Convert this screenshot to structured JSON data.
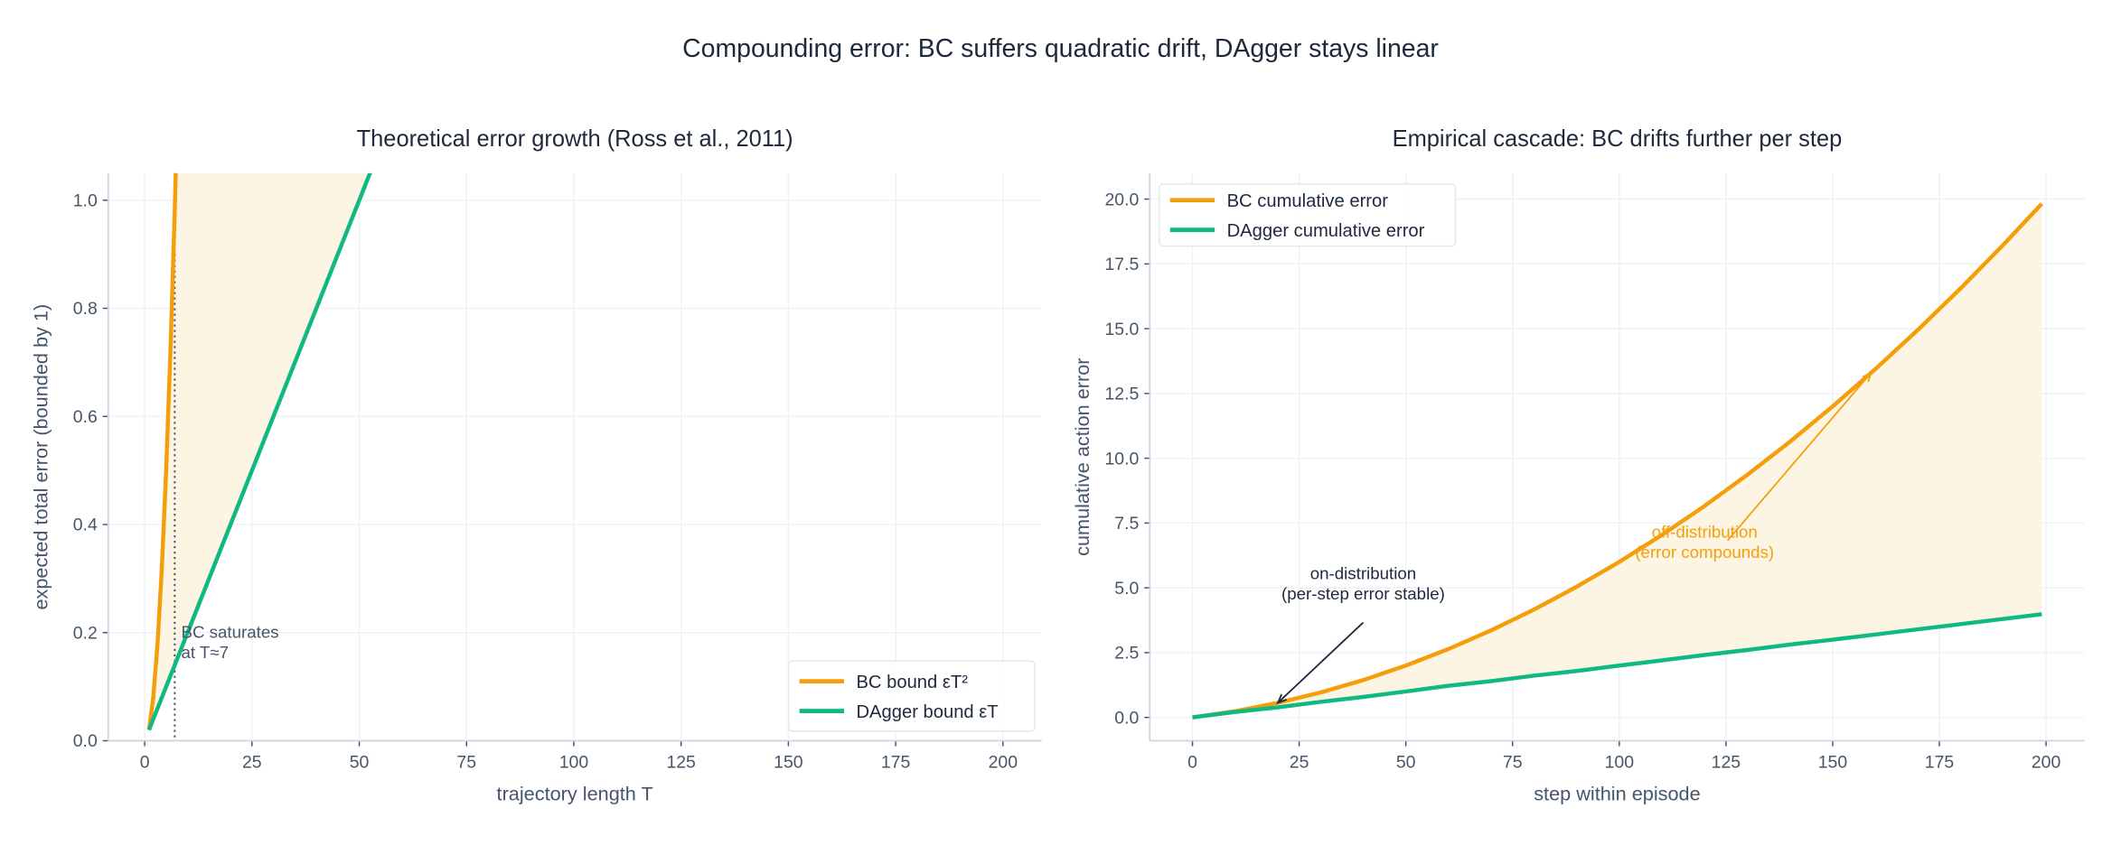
{
  "figure": {
    "suptitle": "Compounding error: BC suffers quadratic drift, DAgger stays linear"
  },
  "colors": {
    "bc": "#f59e0b",
    "dagger": "#10b981",
    "fill": "#fdf3de",
    "text": "#1e293b",
    "tick": "#475569",
    "grid": "#eef2f6",
    "spine": "#cbd5e1",
    "guide": "#475569"
  },
  "chart_data": [
    {
      "type": "line",
      "title": "Theoretical error growth (Ross et al., 2011)",
      "xlabel": "trajectory length T",
      "ylabel": "expected total error (bounded by 1)",
      "xlim": [
        -8.5,
        209
      ],
      "ylim": [
        0,
        1.05
      ],
      "xticks": [
        0,
        25,
        50,
        75,
        100,
        125,
        150,
        175,
        200
      ],
      "xtick_labels": [
        "0",
        "25",
        "50",
        "75",
        "100",
        "125",
        "150",
        "175",
        "200"
      ],
      "yticks": [
        0,
        0.2,
        0.4,
        0.6,
        0.8,
        1.0
      ],
      "ytick_labels": [
        "0.0",
        "0.2",
        "0.4",
        "0.6",
        "0.8",
        "1.0"
      ],
      "grid": true,
      "legend": "lower-right",
      "shaded_between_series": true,
      "series": [
        {
          "name": "BC bound  εT²",
          "color": "bc",
          "x": [
            1,
            2,
            3,
            4,
            5,
            6,
            7,
            8
          ],
          "y": [
            0.02,
            0.08,
            0.18,
            0.32,
            0.5,
            0.72,
            0.98,
            1.28
          ]
        },
        {
          "name": "DAgger bound  εT",
          "color": "dagger",
          "x": [
            1,
            10,
            20,
            30,
            40,
            50,
            60
          ],
          "y": [
            0.02,
            0.2,
            0.4,
            0.6,
            0.8,
            1.0,
            1.2
          ]
        }
      ],
      "vline": {
        "x": 7,
        "style": "dotted"
      },
      "annotations": [
        {
          "text_lines": [
            "BC saturates",
            "at T≈7"
          ],
          "x": 8.5,
          "y": 0.2
        }
      ]
    },
    {
      "type": "line",
      "title": "Empirical cascade: BC drifts further per step",
      "xlabel": "step within episode",
      "ylabel": "cumulative action error",
      "xlim": [
        -10,
        209
      ],
      "ylim": [
        -0.9,
        21
      ],
      "xticks": [
        0,
        25,
        50,
        75,
        100,
        125,
        150,
        175,
        200
      ],
      "xtick_labels": [
        "0",
        "25",
        "50",
        "75",
        "100",
        "125",
        "150",
        "175",
        "200"
      ],
      "yticks": [
        0,
        2.5,
        5,
        7.5,
        10,
        12.5,
        15,
        17.5,
        20
      ],
      "ytick_labels": [
        "0.0",
        "2.5",
        "5.0",
        "7.5",
        "10.0",
        "12.5",
        "15.0",
        "17.5",
        "20.0"
      ],
      "grid": true,
      "legend": "upper-left",
      "shaded_between_series": true,
      "series": [
        {
          "name": "BC cumulative error",
          "color": "bc",
          "x": [
            0,
            10,
            20,
            30,
            40,
            50,
            60,
            70,
            80,
            90,
            100,
            110,
            120,
            130,
            140,
            150,
            160,
            170,
            180,
            190,
            199
          ],
          "y": [
            0,
            0.24,
            0.56,
            0.96,
            1.44,
            2.0,
            2.64,
            3.36,
            4.16,
            5.04,
            6.0,
            7.04,
            8.16,
            9.36,
            10.64,
            12.0,
            13.44,
            14.96,
            16.56,
            18.24,
            19.82
          ]
        },
        {
          "name": "DAgger cumulative error",
          "color": "dagger",
          "x": [
            0,
            10,
            20,
            30,
            40,
            50,
            60,
            70,
            80,
            90,
            100,
            110,
            120,
            130,
            140,
            150,
            160,
            170,
            180,
            190,
            199
          ],
          "y": [
            0,
            0.21,
            0.39,
            0.6,
            0.79,
            1.0,
            1.22,
            1.4,
            1.61,
            1.79,
            2.0,
            2.2,
            2.41,
            2.6,
            2.81,
            3.0,
            3.2,
            3.4,
            3.6,
            3.8,
            3.98
          ]
        }
      ],
      "annotations": [
        {
          "text_lines": [
            "on-distribution",
            "(per-step error stable)"
          ],
          "text_x": 40,
          "text_y": 4.6,
          "arrow_to": [
            20,
            0.56
          ],
          "color": "text"
        },
        {
          "text_lines": [
            "off-distribution",
            "(error compounds)"
          ],
          "text_x": 120,
          "text_y": 6.2,
          "arrow_to": [
            159,
            13.3
          ],
          "color": "bc"
        }
      ]
    }
  ]
}
